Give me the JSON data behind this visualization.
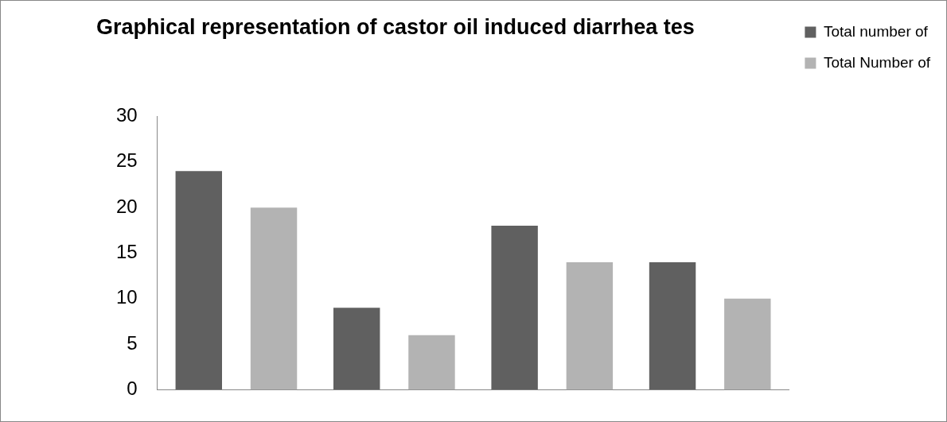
{
  "chart_data": {
    "type": "bar",
    "title": "Graphical representation of castor oil induced diarrhea tes",
    "categories": [
      null,
      null,
      null,
      null
    ],
    "series": [
      {
        "name": "Total number of",
        "color": "#606060",
        "values": [
          24,
          9,
          18,
          14
        ]
      },
      {
        "name": "Total Number of",
        "color": "#b3b3b3",
        "values": [
          20,
          6,
          14,
          10
        ]
      }
    ],
    "ylim": [
      0,
      30
    ],
    "yticks": [
      0,
      5,
      10,
      15,
      20,
      25,
      30
    ],
    "grid": false,
    "legend": "right"
  }
}
